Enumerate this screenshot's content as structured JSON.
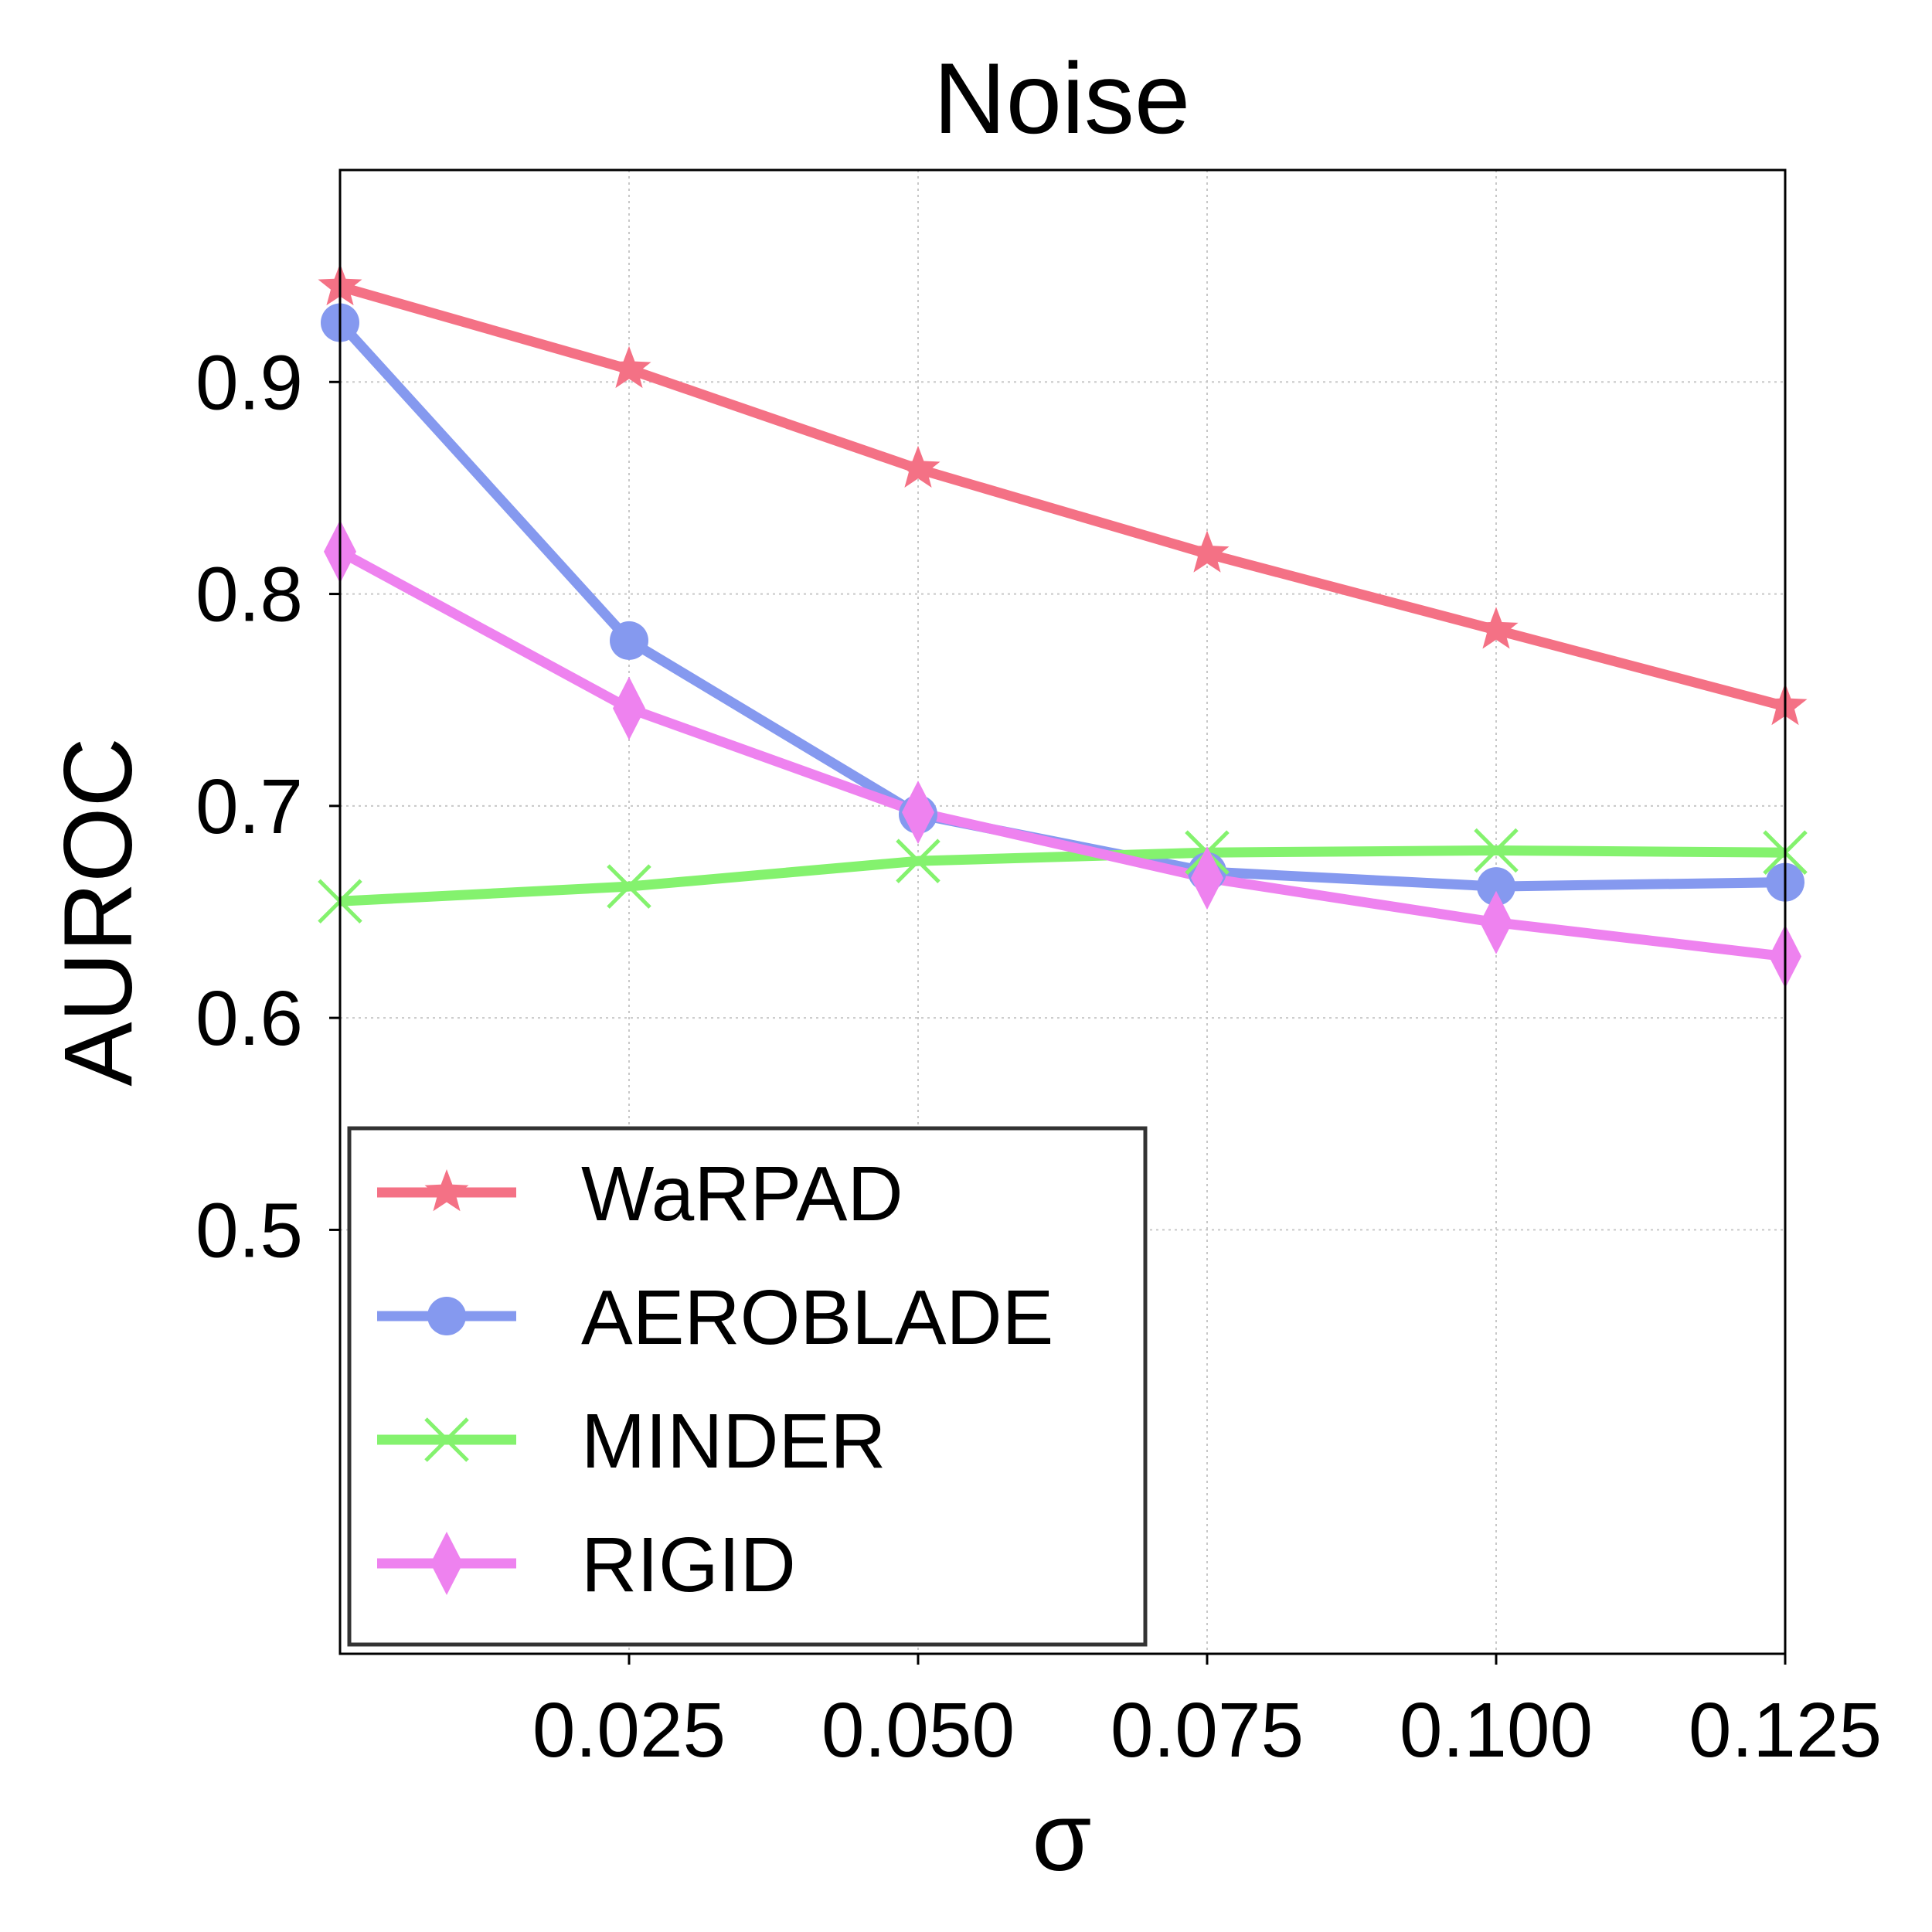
{
  "chart_data": {
    "type": "line",
    "title": "Noise",
    "xlabel": "σ",
    "ylabel": "AUROC",
    "x": [
      0.0,
      0.025,
      0.05,
      0.075,
      0.1,
      0.125
    ],
    "xticks": [
      0.025,
      0.05,
      0.075,
      0.1,
      0.125
    ],
    "xtick_labels": [
      "0.025",
      "0.050",
      "0.075",
      "0.100",
      "0.125"
    ],
    "yticks": [
      0.5,
      0.6,
      0.7,
      0.8,
      0.9
    ],
    "ytick_labels": [
      "0.5",
      "0.6",
      "0.7",
      "0.8",
      "0.9"
    ],
    "xlim": [
      0.0,
      0.125
    ],
    "ylim": [
      0.3,
      1.0
    ],
    "grid": true,
    "legend_position": "lower-left",
    "series": [
      {
        "name": "WaRPAD",
        "color": "#f47185",
        "marker": "star",
        "values": [
          0.945,
          0.906,
          0.859,
          0.819,
          0.783,
          0.747
        ]
      },
      {
        "name": "AEROBLADE",
        "color": "#8599ef",
        "marker": "circle",
        "values": [
          0.928,
          0.778,
          0.696,
          0.669,
          0.662,
          0.664
        ]
      },
      {
        "name": "MINDER",
        "color": "#84f26e",
        "marker": "x",
        "values": [
          0.655,
          0.662,
          0.674,
          0.678,
          0.679,
          0.678
        ]
      },
      {
        "name": "RIGID",
        "color": "#ee82ef",
        "marker": "diamond",
        "values": [
          0.82,
          0.746,
          0.697,
          0.666,
          0.645,
          0.629
        ]
      }
    ]
  }
}
